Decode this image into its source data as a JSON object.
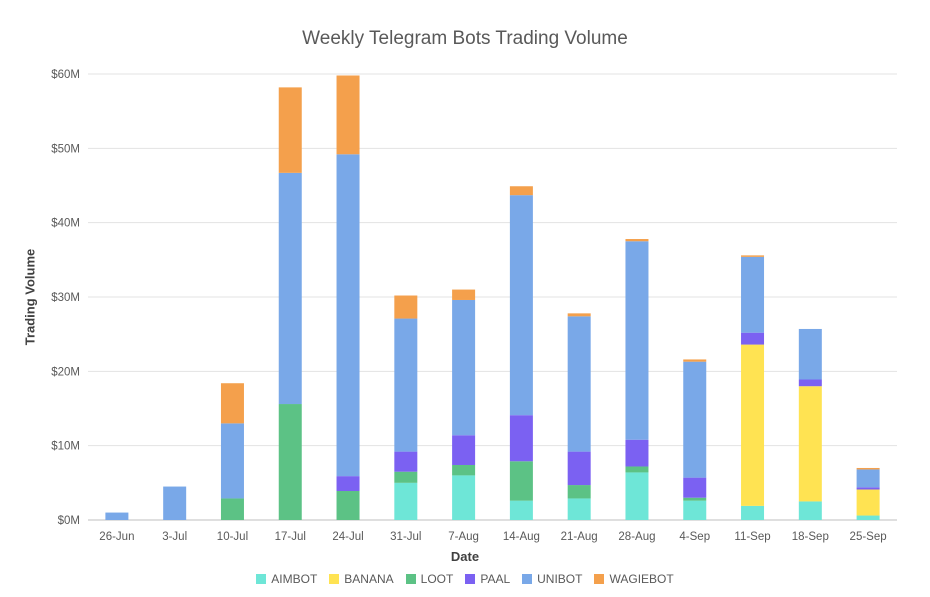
{
  "chart_data": {
    "type": "bar",
    "stacked": true,
    "title": "Weekly Telegram Bots Trading Volume",
    "xlabel": "Date",
    "ylabel": "Trading Volume",
    "ylim": [
      0,
      60
    ],
    "y_unit": "$M",
    "y_ticks": [
      "$0M",
      "$10M",
      "$20M",
      "$30M",
      "$40M",
      "$50M",
      "$60M"
    ],
    "grid": true,
    "legend_position": "bottom",
    "categories": [
      "26-Jun",
      "3-Jul",
      "10-Jul",
      "17-Jul",
      "24-Jul",
      "31-Jul",
      "7-Aug",
      "14-Aug",
      "21-Aug",
      "28-Aug",
      "4-Sep",
      "11-Sep",
      "18-Sep",
      "25-Sep"
    ],
    "series": [
      {
        "name": "AIMBOT",
        "color": "#6ee6d7",
        "values": [
          0,
          0,
          0,
          0,
          0,
          5.0,
          6.0,
          2.6,
          2.9,
          6.4,
          2.6,
          1.9,
          2.5,
          0.6
        ]
      },
      {
        "name": "BANANA",
        "color": "#ffe352",
        "values": [
          0,
          0,
          0,
          0,
          0,
          0,
          0,
          0,
          0,
          0,
          0,
          21.7,
          15.5,
          3.5
        ]
      },
      {
        "name": "LOOT",
        "color": "#5cc285",
        "values": [
          0,
          0,
          2.9,
          15.6,
          3.9,
          1.5,
          1.4,
          5.3,
          1.8,
          0.8,
          0.4,
          0,
          0,
          0
        ]
      },
      {
        "name": "PAAL",
        "color": "#7b61f2",
        "values": [
          0,
          0,
          0,
          0,
          2.0,
          2.7,
          4.0,
          6.2,
          4.5,
          3.6,
          2.7,
          1.6,
          0.9,
          0.3
        ]
      },
      {
        "name": "UNIBOT",
        "color": "#79a8e8",
        "values": [
          1.0,
          4.5,
          10.1,
          31.1,
          43.3,
          17.9,
          18.2,
          29.6,
          18.2,
          26.7,
          15.6,
          10.2,
          6.8,
          2.4
        ]
      },
      {
        "name": "WAGIEBOT",
        "color": "#f4a04c",
        "values": [
          0,
          0,
          5.4,
          11.5,
          10.6,
          3.1,
          1.4,
          1.2,
          0.4,
          0.3,
          0.3,
          0.2,
          0,
          0.2
        ]
      }
    ]
  }
}
